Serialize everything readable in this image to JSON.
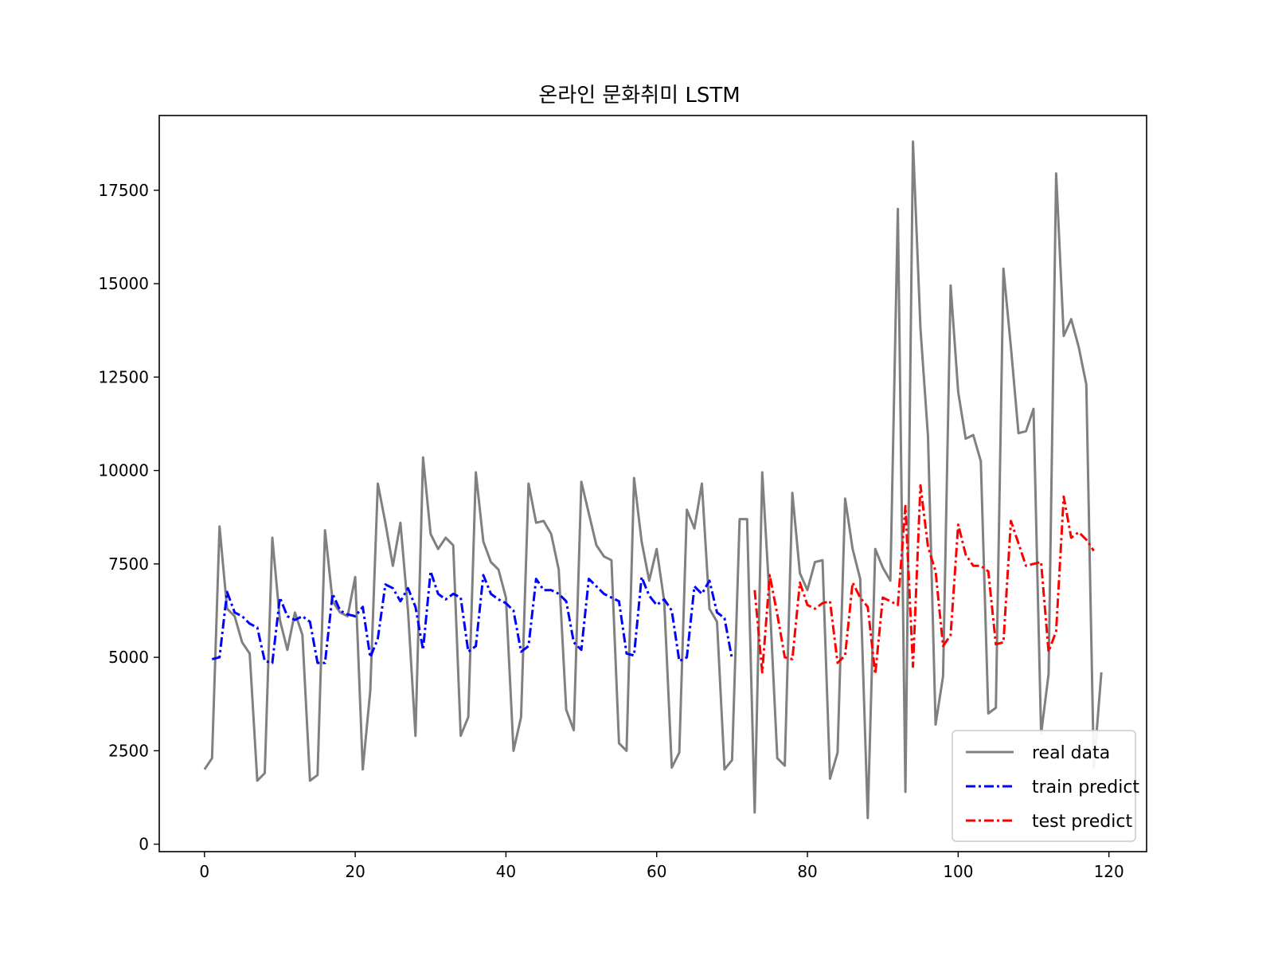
{
  "chart_data": {
    "type": "line",
    "title": "온라인 문화취미 LSTM",
    "xlabel": "",
    "ylabel": "",
    "xlim": [
      -6,
      125
    ],
    "ylim": [
      -200,
      19500
    ],
    "x_ticks": [
      0,
      20,
      40,
      60,
      80,
      100,
      120
    ],
    "y_ticks": [
      0,
      2500,
      5000,
      7500,
      10000,
      12500,
      15000,
      17500
    ],
    "grid": false,
    "legend_position": "lower-right",
    "series": [
      {
        "name": "real data",
        "color": "#808080",
        "style": "solid",
        "x_start": 0,
        "values": [
          2000,
          2300,
          8500,
          6300,
          6100,
          5400,
          5100,
          1700,
          1900,
          8200,
          6000,
          5200,
          6200,
          5600,
          1700,
          1850,
          8400,
          6500,
          6200,
          6100,
          7150,
          2000,
          4100,
          9650,
          8600,
          7450,
          8600,
          6250,
          2900,
          10350,
          8300,
          7900,
          8200,
          8000,
          2900,
          3400,
          9950,
          8100,
          7550,
          7350,
          6600,
          2500,
          3400,
          9650,
          8600,
          8650,
          8300,
          7350,
          3600,
          3050,
          9700,
          8850,
          8000,
          7700,
          7600,
          2700,
          2500,
          9800,
          8100,
          7050,
          7900,
          6500,
          2050,
          2450,
          8950,
          8450,
          9650,
          6300,
          5950,
          2000,
          2250,
          8700,
          8700,
          850,
          9950,
          6500,
          2300,
          2100,
          9400,
          7250,
          6800,
          7550,
          7600,
          1750,
          2450,
          9250,
          7900,
          7100,
          700,
          7900,
          7400,
          7050,
          17000,
          1400,
          18800,
          13800,
          10900,
          3200,
          4500,
          14950,
          12100,
          10850,
          10950,
          10250,
          3500,
          3650,
          15400,
          13300,
          11000,
          11050,
          11650,
          2950,
          4550,
          17950,
          13600,
          14050,
          13300,
          12300,
          2050,
          4600
        ]
      },
      {
        "name": "train predict",
        "color": "#0000ff",
        "style": "dashdot",
        "x_start": 1,
        "values": [
          4950,
          5000,
          6750,
          6200,
          6100,
          5900,
          5800,
          4900,
          4850,
          6600,
          6100,
          6000,
          6100,
          5950,
          4850,
          4850,
          6700,
          6250,
          6150,
          6100,
          6350,
          5000,
          5500,
          6950,
          6850,
          6500,
          6850,
          6350,
          5200,
          7300,
          6700,
          6550,
          6700,
          6600,
          5150,
          5300,
          7200,
          6700,
          6550,
          6450,
          6250,
          5150,
          5300,
          7100,
          6800,
          6800,
          6700,
          6500,
          5400,
          5200,
          7100,
          6900,
          6700,
          6600,
          6500,
          5100,
          5050,
          7150,
          6650,
          6400,
          6550,
          6250,
          4900,
          5000,
          6900,
          6700,
          7050,
          6200,
          6050,
          4950
        ]
      },
      {
        "name": "test predict",
        "color": "#ff0000",
        "style": "dashdot",
        "x_start": 73,
        "values": [
          6800,
          4600,
          7200,
          6150,
          5000,
          4950,
          7000,
          6400,
          6300,
          6450,
          6500,
          4850,
          5050,
          7000,
          6600,
          6350,
          4550,
          6600,
          6500,
          6400,
          9050,
          4750,
          9600,
          7950,
          7300,
          5300,
          5600,
          8550,
          7750,
          7450,
          7450,
          7300,
          5350,
          5400,
          8650,
          8050,
          7450,
          7500,
          7550,
          5150,
          5700,
          9300,
          8200,
          8350,
          8150,
          7850
        ]
      }
    ]
  }
}
